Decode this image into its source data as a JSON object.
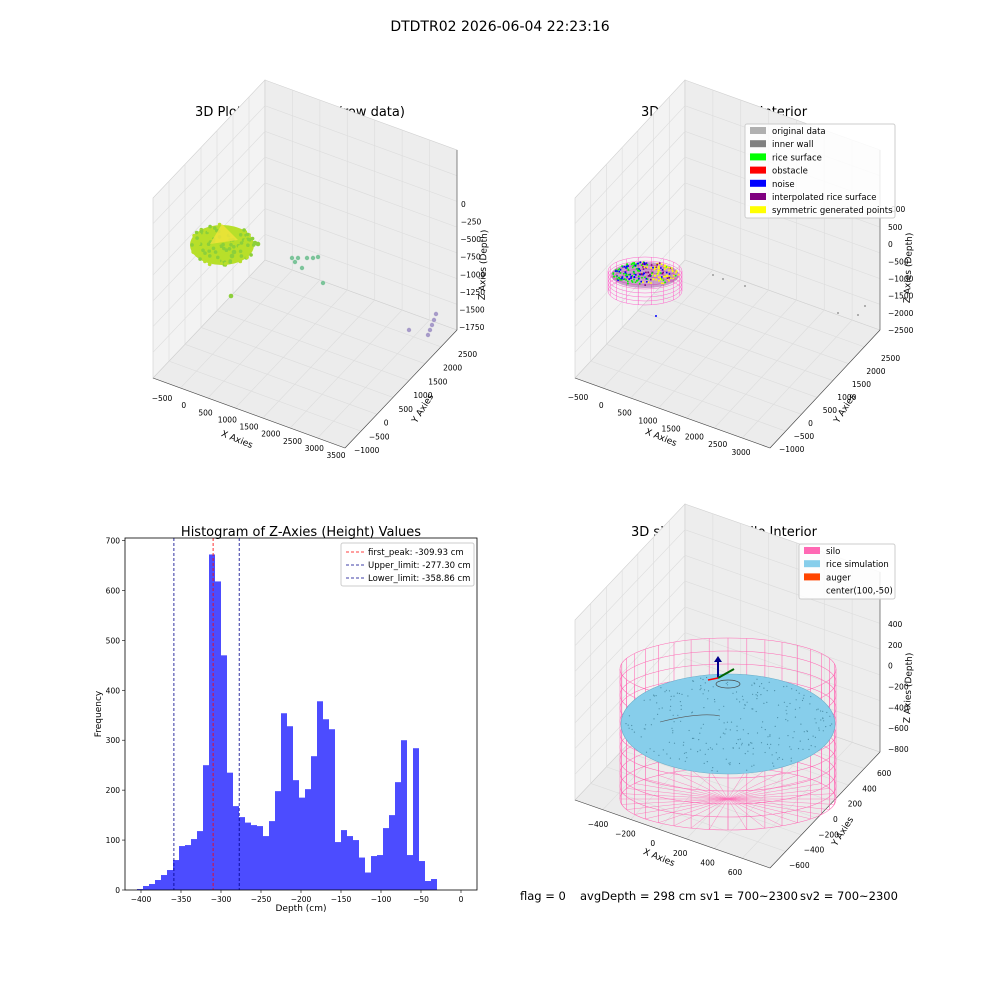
{
  "figure": {
    "suptitle": "DTDTR02 2026-06-04 22:23:16",
    "footer": {
      "flag": "flag = 0",
      "avg_depth": "avgDepth = 298 cm",
      "sv1": "sv1 = 700~2300",
      "sv2": "sv2 = 700~2300"
    }
  },
  "chart_data": [
    {
      "type": "scatter",
      "title": "3D Plot of Silo Interior(row data)",
      "xlabel": "X Axies",
      "ylabel": "Y Axies",
      "zlabel": "Z Axies (Depth)",
      "x_ticks": [
        "−500",
        "0",
        "500",
        "1000",
        "1500",
        "2000",
        "2500",
        "3000",
        "3500"
      ],
      "y_ticks": [
        "−1000",
        "−500",
        "0",
        "500",
        "1000",
        "1500",
        "2000",
        "2500"
      ],
      "z_ticks": [
        "0",
        "−250",
        "−500",
        "−750",
        "−1000",
        "−1250",
        "−1500",
        "−1750"
      ],
      "colors": {
        "main": "#b8df2a",
        "main2": "#8ccf3a",
        "cluster": "#7cc49a",
        "outlier": "#a79bc9"
      }
    },
    {
      "type": "scatter",
      "title": "3D classify of Silo Interior",
      "xlabel": "X Axies",
      "ylabel": "Y Axies",
      "zlabel": "Z Axies (Depth)",
      "x_ticks": [
        "−500",
        "0",
        "500",
        "1000",
        "1500",
        "2000",
        "2500",
        "3000"
      ],
      "y_ticks": [
        "−1000",
        "−500",
        "0",
        "500",
        "1000",
        "1500",
        "2000",
        "2500"
      ],
      "z_ticks": [
        "500",
        "0",
        "−500",
        "−1000",
        "−1500",
        "−2000",
        "−2500"
      ],
      "z_tick_partial": "000",
      "legend": [
        {
          "label": "original data",
          "color": "#b0b0b0"
        },
        {
          "label": "inner wall",
          "color": "#808080"
        },
        {
          "label": "rice surface",
          "color": "#00ff00"
        },
        {
          "label": "obstacle",
          "color": "#ff0000"
        },
        {
          "label": "noise",
          "color": "#0000ff"
        },
        {
          "label": "interpolated rice surface",
          "color": "#800080"
        },
        {
          "label": "symmetric generated points",
          "color": "#ffff00"
        }
      ]
    },
    {
      "type": "bar",
      "title": "Histogram of Z-Axies (Height) Values",
      "xlabel": "Depth (cm)",
      "ylabel": "Frequency",
      "xlim": [
        -420,
        20
      ],
      "ylim": [
        0,
        705
      ],
      "x_ticks": [
        -400,
        -350,
        -300,
        -250,
        -200,
        -150,
        -100,
        -50,
        0
      ],
      "y_ticks": [
        0,
        100,
        200,
        300,
        400,
        500,
        600,
        700
      ],
      "bin_start": -405,
      "bin_width": 7.5,
      "values": [
        2,
        8,
        12,
        20,
        30,
        40,
        60,
        88,
        90,
        102,
        118,
        250,
        672,
        618,
        470,
        235,
        168,
        146,
        135,
        130,
        128,
        108,
        138,
        198,
        354,
        328,
        220,
        185,
        202,
        268,
        378,
        342,
        322,
        96,
        120,
        108,
        100,
        65,
        35,
        68,
        70,
        124,
        150,
        216,
        300,
        70,
        284,
        58,
        18,
        22
      ],
      "bar_color": "#0000ff",
      "lines": [
        {
          "label": "first_peak: -309.93 cm",
          "value": -309.93,
          "color": "#ff0000"
        },
        {
          "label": "Upper_limit: -277.30 cm",
          "value": -277.3,
          "color": "#00008b"
        },
        {
          "label": "Lower_limit: -358.86 cm",
          "value": -358.86,
          "color": "#00008b"
        }
      ]
    },
    {
      "type": "scatter",
      "title": "3D simulation of Silo Interior",
      "xlabel": "X Axies",
      "ylabel": "Y Axies",
      "zlabel": "Z Axies (Depth)",
      "x_ticks": [
        "−400",
        "−200",
        "0",
        "200",
        "400",
        "600"
      ],
      "y_ticks": [
        "−600",
        "−400",
        "−200",
        "0",
        "200",
        "400",
        "600"
      ],
      "z_ticks": [
        "400",
        "200",
        "0",
        "−200",
        "−400",
        "−600",
        "−800"
      ],
      "legend": [
        {
          "label": "silo",
          "color": "#ff69b4"
        },
        {
          "label": "rice simulation",
          "color": "#87ceeb"
        },
        {
          "label": "auger",
          "color": "#ff4500"
        },
        {
          "label": "center(100,-50)",
          "color": ""
        }
      ]
    }
  ]
}
